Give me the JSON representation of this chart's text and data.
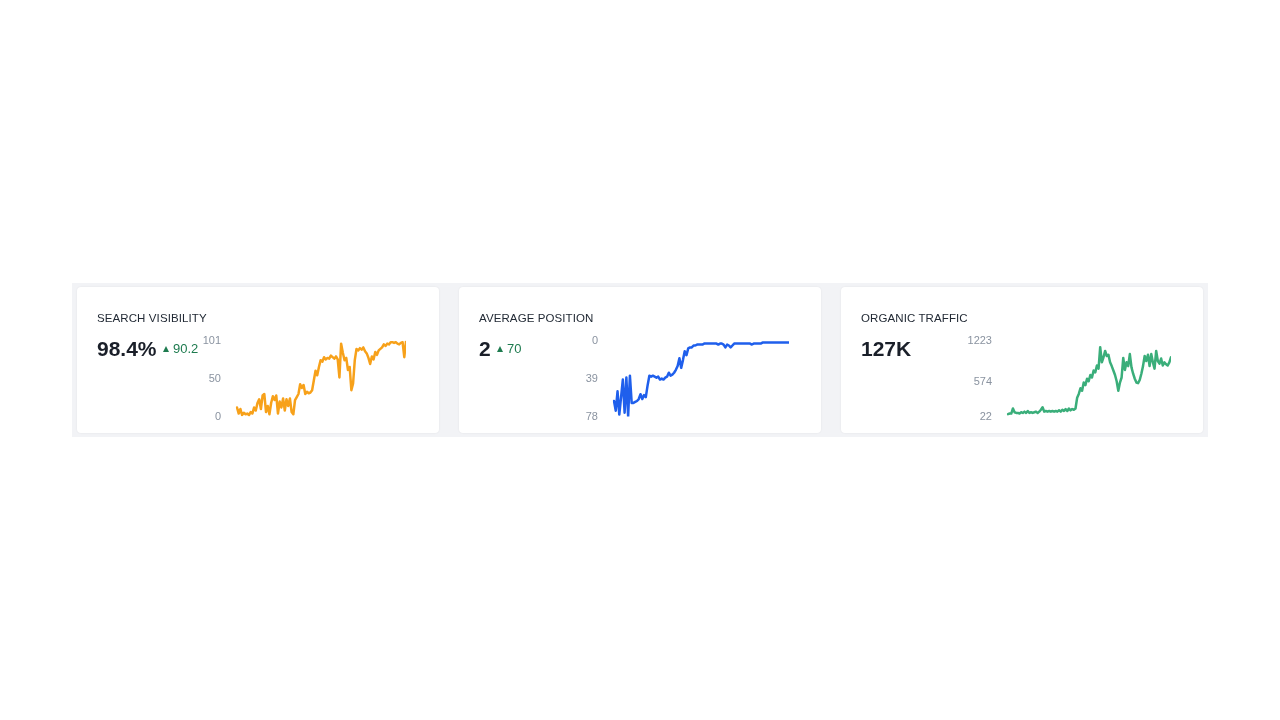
{
  "chart_data": [
    {
      "type": "line",
      "title": "SEARCH VISIBILITY",
      "subtitle": "98.4%",
      "annotations": [
        "90.2"
      ],
      "categories": [
        null,
        null,
        null,
        null,
        null,
        null,
        null,
        null,
        null,
        null,
        null,
        null,
        null,
        null,
        null,
        null,
        null,
        null,
        null,
        null,
        null,
        null,
        null,
        null,
        null,
        null,
        null,
        null,
        null,
        null,
        null,
        null,
        null,
        null,
        null,
        null,
        null,
        null,
        null,
        null,
        null,
        null,
        null,
        null,
        null,
        null,
        null,
        null,
        null,
        null,
        null,
        null,
        null,
        null,
        null,
        null,
        null,
        null,
        null,
        null,
        null,
        null,
        null,
        null,
        null,
        null,
        null,
        null,
        null,
        null,
        null,
        null,
        null,
        null,
        null,
        null,
        null,
        null,
        null,
        null,
        null,
        null,
        null,
        null,
        null,
        null,
        null,
        null,
        null,
        null,
        null,
        null,
        null,
        null,
        null,
        null,
        null,
        null,
        null,
        null
      ],
      "series": [
        {
          "color": "#f7a11a",
          "values": [
            12,
            4,
            10,
            2,
            5,
            3,
            4,
            2,
            6,
            4,
            12,
            8,
            18,
            23,
            10,
            28,
            30,
            6,
            14,
            3,
            18,
            27,
            22,
            28,
            4,
            20,
            12,
            24,
            8,
            23,
            14,
            24,
            6,
            3,
            22,
            26,
            30,
            43,
            38,
            42,
            30,
            33,
            31,
            32,
            35,
            48,
            61,
            55,
            66,
            75,
            73,
            79,
            76,
            78,
            77,
            81,
            79,
            77,
            80,
            76,
            52,
            97,
            85,
            75,
            78,
            62,
            66,
            35,
            44,
            75,
            90,
            88,
            91,
            89,
            92,
            87,
            84,
            78,
            70,
            80,
            76,
            86,
            82,
            88,
            90,
            92,
            96,
            94,
            97,
            96,
            99,
            99,
            98,
            99,
            97,
            96,
            98,
            99,
            79,
            100
          ]
        }
      ],
      "ylim": [
        0,
        101
      ],
      "yticks": [
        0,
        50,
        101
      ],
      "tick_labels": "y",
      "marker": "none"
    },
    {
      "type": "line",
      "title": "AVERAGE POSITION",
      "subtitle": "2",
      "annotations": [
        "70"
      ],
      "categories": [
        null,
        null,
        null,
        null,
        null,
        null,
        null,
        null,
        null,
        null,
        null,
        null,
        null,
        null,
        null,
        null,
        null,
        null,
        null,
        null,
        null,
        null,
        null,
        null,
        null,
        null,
        null,
        null,
        null,
        null,
        null,
        null,
        null,
        null,
        null,
        null,
        null,
        null,
        null,
        null,
        null,
        null,
        null,
        null,
        null,
        null,
        null,
        null,
        null,
        null,
        null,
        null,
        null,
        null,
        null,
        null,
        null,
        null,
        null,
        null,
        null,
        null,
        null,
        null,
        null,
        null,
        null,
        null,
        null,
        null,
        null,
        null,
        null,
        null,
        null,
        null,
        null,
        null,
        null,
        null,
        null,
        null,
        null,
        null,
        null,
        null,
        null,
        null,
        null,
        null,
        null,
        null,
        null,
        null,
        null,
        null,
        null,
        null,
        null,
        null
      ],
      "series": [
        {
          "color": "#1f5fec",
          "values": [
            62,
            72,
            52,
            76,
            58,
            40,
            74,
            38,
            78,
            36,
            64,
            64,
            63,
            62,
            60,
            55,
            60,
            56,
            58,
            46,
            36,
            37,
            36,
            37,
            38,
            37,
            40,
            39,
            40,
            38,
            37,
            33,
            36,
            35,
            33,
            30,
            26,
            18,
            28,
            20,
            11,
            15,
            8,
            7,
            7,
            5,
            5,
            4,
            4,
            4,
            4,
            3,
            3,
            3,
            3,
            3,
            3,
            3,
            3,
            4,
            3,
            3,
            4,
            7,
            4,
            5,
            7,
            5,
            3,
            3,
            3,
            3,
            3,
            3,
            3,
            3,
            3,
            3,
            4,
            3,
            3,
            3,
            3,
            3,
            2,
            2,
            2,
            2,
            2,
            2,
            2,
            2,
            2,
            2,
            2,
            2,
            2,
            2,
            2,
            2
          ]
        }
      ],
      "ylim": [
        78,
        0
      ],
      "yticks": [
        0,
        39,
        78
      ],
      "tick_labels": "y",
      "marker": "none"
    },
    {
      "type": "line",
      "title": "ORGANIC TRAFFIC",
      "subtitle": "127K",
      "categories": [
        null,
        null,
        null,
        null,
        null,
        null,
        null,
        null,
        null,
        null,
        null,
        null,
        null,
        null,
        null,
        null,
        null,
        null,
        null,
        null,
        null,
        null,
        null,
        null,
        null,
        null,
        null,
        null,
        null,
        null,
        null,
        null,
        null,
        null,
        null,
        null,
        null,
        null,
        null,
        null,
        null,
        null,
        null,
        null,
        null,
        null,
        null,
        null,
        null,
        null,
        null,
        null,
        null,
        null,
        null,
        null,
        null,
        null,
        null,
        null,
        null,
        null,
        null,
        null,
        null,
        null,
        null,
        null,
        null,
        null,
        null,
        null,
        null,
        null,
        null,
        null,
        null,
        null,
        null,
        null,
        null,
        null,
        null,
        null,
        null,
        null,
        null,
        null,
        null,
        null,
        null,
        null,
        null,
        null,
        null,
        null,
        null,
        null,
        null,
        null
      ],
      "series": [
        {
          "color": "#3aae7a",
          "values": [
            60,
            70,
            70,
            150,
            90,
            80,
            80,
            70,
            90,
            80,
            100,
            80,
            110,
            80,
            90,
            80,
            90,
            100,
            80,
            100,
            130,
            170,
            100,
            110,
            100,
            110,
            100,
            110,
            100,
            110,
            100,
            120,
            100,
            130,
            110,
            140,
            110,
            150,
            120,
            140,
            130,
            150,
            320,
            380,
            470,
            430,
            560,
            520,
            620,
            580,
            680,
            640,
            750,
            720,
            830,
            780,
            1120,
            880,
            960,
            1060,
            980,
            1000,
            880,
            820,
            750,
            680,
            580,
            430,
            560,
            640,
            950,
            760,
            880,
            820,
            1010,
            800,
            700,
            620,
            560,
            550,
            600,
            700,
            820,
            980,
            900,
            1000,
            820,
            1010,
            880,
            780,
            1060,
            900,
            860,
            940,
            830,
            880,
            850,
            830,
            880,
            960
          ]
        }
      ],
      "ylim": [
        22,
        1223
      ],
      "yticks": [
        22,
        574,
        1223
      ],
      "tick_labels": "y",
      "marker": "none"
    }
  ]
}
